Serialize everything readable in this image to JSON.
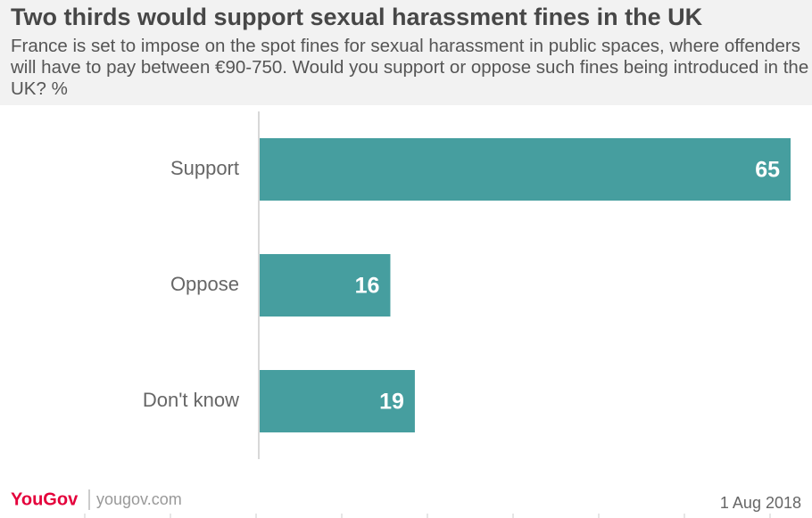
{
  "chart_data": {
    "type": "hbar",
    "title": "Two thirds would support sexual harassment fines in the UK",
    "subtitle": "France is set to impose on the spot fines for sexual harassment in public spaces, where offenders will have to pay between €90-750. Would you support or oppose such fines being introduced in the UK? %",
    "categories": [
      "Support",
      "Oppose",
      "Don't know"
    ],
    "values": [
      65,
      16,
      19
    ],
    "color": "#469e9f",
    "xlim": [
      0,
      65
    ],
    "logo": "YouGov",
    "source": "yougov.com",
    "date": "1 Aug 2018"
  }
}
